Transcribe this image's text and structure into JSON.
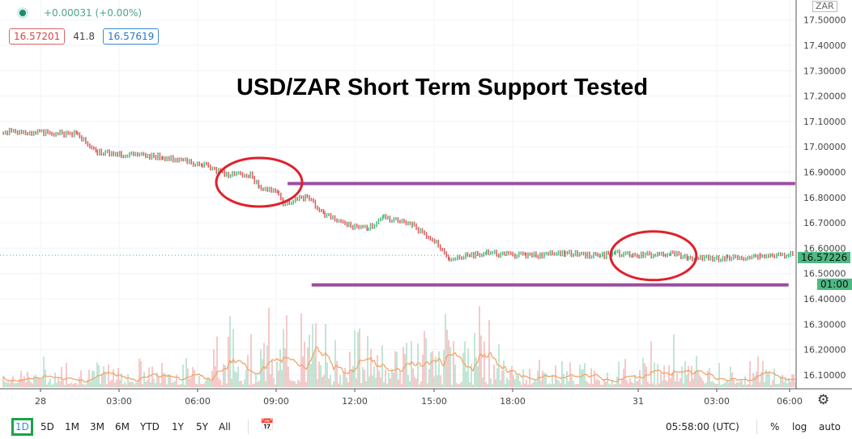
{
  "header": {
    "change": "+0.00031 (+0.00%)",
    "bid": "16.57201",
    "spread": "41.8",
    "ask": "16.57619",
    "currency": "ZAR"
  },
  "title": "USD/ZAR Short Term Support Tested",
  "price_badge": "16.57226",
  "countdown_badge": "01:00",
  "toolbar": {
    "ranges": [
      "1D",
      "5D",
      "1M",
      "3M",
      "6M",
      "YTD",
      "1Y",
      "5Y",
      "All"
    ],
    "selected": "1D",
    "clock": "05:58:00 (UTC)",
    "percent": "%",
    "log": "log",
    "auto": "auto"
  },
  "chart_data": {
    "type": "line",
    "ylim": [
      16.05,
      17.55
    ],
    "y_ticks": [
      "17.50000",
      "17.40000",
      "17.30000",
      "17.20000",
      "17.10000",
      "17.00000",
      "16.90000",
      "16.80000",
      "16.70000",
      "16.60000",
      "16.50000",
      "16.40000",
      "16.30000",
      "16.20000",
      "16.10000"
    ],
    "x_ticks": [
      "28",
      "03:00",
      "06:00",
      "09:00",
      "12:00",
      "15:00",
      "18:00",
      "31",
      "03:00",
      "06:00"
    ],
    "series": [
      {
        "x": [
          "27 22:35",
          "28 01:25",
          "28 02:10",
          "28 03:05",
          "28 04:40",
          "28 06:10",
          "28 07:05",
          "28 08:00",
          "28 08:20",
          "28 09:05",
          "28 09:15",
          "28 10:10",
          "28 10:50",
          "28 11:45",
          "28 12:30",
          "28 13:05",
          "28 14:10",
          "28 15:05",
          "28 15:35",
          "28 17:00",
          "28 18:30",
          "28 20:00",
          "28 21:20",
          "28 21:55",
          "28 22:35",
          "31 01:15",
          "31 01:55",
          "31 03:25",
          "31 04:40",
          "31 05:55"
        ],
        "y": [
          17.06,
          17.05,
          16.98,
          16.97,
          16.96,
          16.93,
          16.89,
          16.89,
          16.84,
          16.82,
          16.78,
          16.8,
          16.73,
          16.69,
          16.68,
          16.72,
          16.69,
          16.62,
          16.56,
          16.58,
          16.57,
          16.58,
          16.57,
          16.58,
          16.57,
          16.58,
          16.56,
          16.56,
          16.57,
          16.575
        ]
      }
    ],
    "current_price": 16.57226,
    "annotations": {
      "resistance": {
        "price": 16.855,
        "from": "28 09:25",
        "to": "31 06:00"
      },
      "support": {
        "price": 16.455,
        "from": "28 10:20",
        "to": "31 05:45"
      },
      "circles": [
        {
          "time": "28 08:20",
          "price": 16.86
        },
        {
          "time": "31 00:35",
          "price": 16.57
        }
      ],
      "line_color": "#9b4ea0",
      "circle_color": "#e0202a"
    },
    "colors": {
      "up": "#4cba82",
      "down": "#e05a5a",
      "volume_ma": "#f3a46a"
    }
  }
}
